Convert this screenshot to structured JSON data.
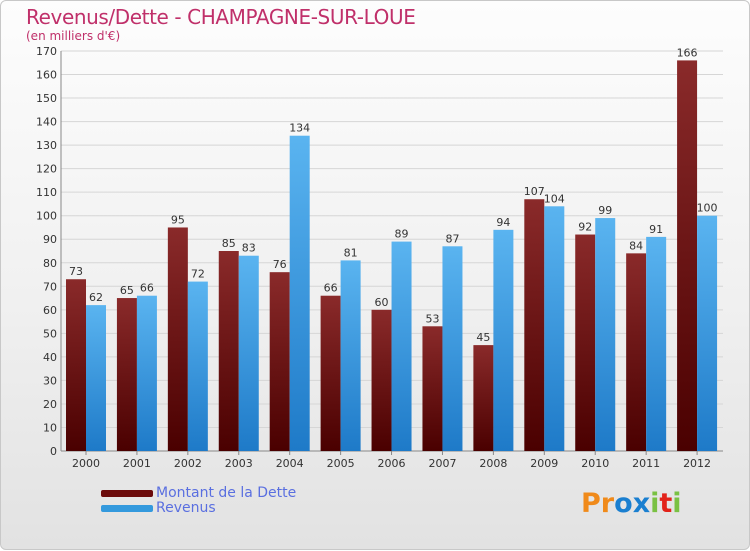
{
  "header": {
    "title": "Revenus/Dette - CHAMPAGNE-SUR-LOUE",
    "subtitle": "(en milliers d'€)"
  },
  "legend": {
    "items": [
      {
        "label": "Montant de la Dette",
        "color": "#6b0a0a"
      },
      {
        "label": "Revenus",
        "color": "#3399dd"
      }
    ]
  },
  "logo": {
    "text": "Proxiti",
    "letters": [
      "P",
      "r",
      "o",
      "x",
      "i",
      "t",
      "i"
    ],
    "colors": [
      "#f08a1a",
      "#f08a1a",
      "#1a7fd0",
      "#1a7fd0",
      "#7ac143",
      "#e2231a",
      "#7ac143"
    ]
  },
  "chart_data": {
    "type": "bar",
    "title": "Revenus/Dette - CHAMPAGNE-SUR-LOUE",
    "ylabel": "(en milliers d'€)",
    "xlabel": "",
    "categories": [
      "2000",
      "2001",
      "2002",
      "2003",
      "2004",
      "2005",
      "2006",
      "2007",
      "2008",
      "2009",
      "2010",
      "2011",
      "2012"
    ],
    "series": [
      {
        "name": "Montant de la Dette",
        "color": "#7a1818",
        "values": [
          73,
          65,
          95,
          85,
          76,
          66,
          60,
          53,
          45,
          107,
          92,
          84,
          166
        ]
      },
      {
        "name": "Revenus",
        "color": "#4aa6e8",
        "values": [
          62,
          66,
          72,
          83,
          134,
          81,
          89,
          87,
          94,
          104,
          99,
          91,
          100
        ]
      }
    ],
    "ylim": [
      0,
      170
    ],
    "yticks": [
      0,
      10,
      20,
      30,
      40,
      50,
      60,
      70,
      80,
      90,
      100,
      110,
      120,
      130,
      140,
      150,
      160,
      170
    ],
    "grid": true,
    "legend": "bottom-left"
  }
}
